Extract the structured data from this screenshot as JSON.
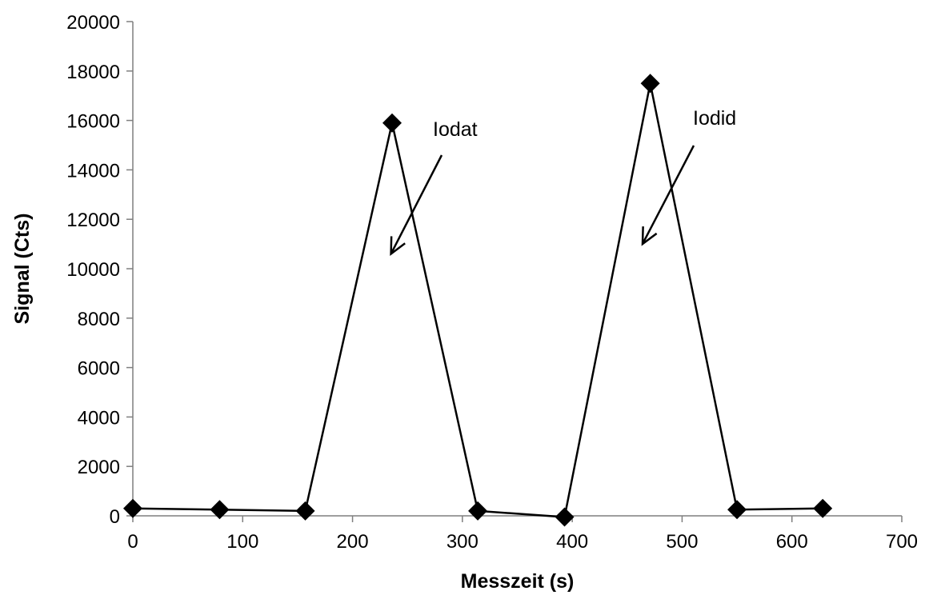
{
  "chart_data": {
    "type": "line",
    "title": "",
    "xlabel": "Messzeit (s)",
    "ylabel": "Signal (Cts)",
    "xlim": [
      0,
      700
    ],
    "ylim": [
      0,
      20000
    ],
    "xticks": [
      0,
      100,
      200,
      300,
      400,
      500,
      600,
      700
    ],
    "yticks": [
      0,
      2000,
      4000,
      6000,
      8000,
      10000,
      12000,
      14000,
      16000,
      18000,
      20000
    ],
    "grid": false,
    "legend": "none",
    "marker": "diamond",
    "line_color": "#000000",
    "series": [
      {
        "x": [
          0,
          79,
          157,
          236,
          314,
          393,
          471,
          550,
          628
        ],
        "y": [
          300,
          250,
          200,
          15900,
          200,
          -50,
          17500,
          250,
          300
        ]
      }
    ],
    "annotations": [
      {
        "text": "Iodat",
        "points_to": {
          "x": 235,
          "y": 10600
        }
      },
      {
        "text": "Iodid",
        "points_to": {
          "x": 464,
          "y": 11000
        }
      }
    ]
  }
}
